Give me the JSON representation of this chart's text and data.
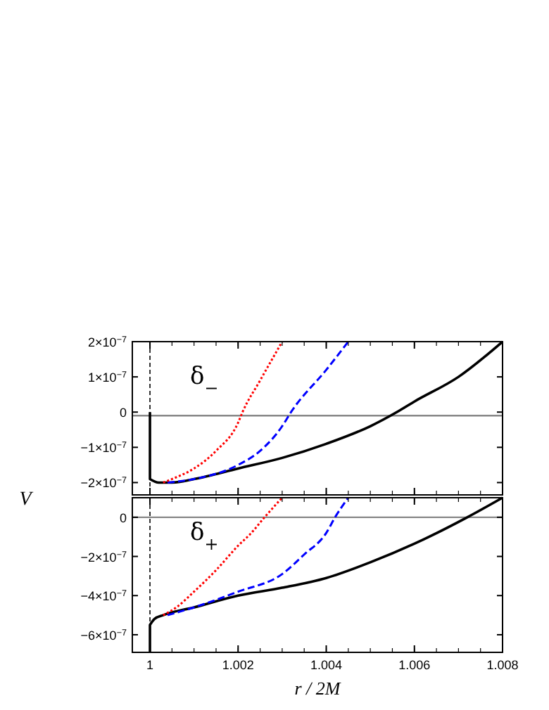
{
  "chart_data": [
    {
      "type": "line",
      "ylabel": "V",
      "xlim": [
        0.9996,
        1.008
      ],
      "ylim": [
        -2.35e-07,
        2e-07
      ],
      "xticks": [
        1,
        1.002,
        1.004,
        1.006,
        1.008
      ],
      "yticks": [
        {
          "value": -2e-07,
          "label": "−2×10$^{−7}$"
        },
        {
          "value": -1e-07,
          "label": "−1×10$^{−7}$"
        },
        {
          "value": 0,
          "label": "0"
        },
        {
          "value": 1e-07,
          "label": "1×10$^{−7}$"
        },
        {
          "value": 2e-07,
          "label": "2×10$^{−7}$"
        }
      ],
      "tick_labels": "y",
      "grid": false,
      "ref_lines": [
        {
          "axis": "x",
          "value": 1,
          "color": "#000000",
          "line_style": "dashed"
        },
        {
          "axis": "y",
          "value": -1e-08,
          "color": "#888888",
          "line_style": "solid"
        }
      ],
      "annotations": [
        "δ$_{−}$"
      ],
      "series": [
        {
          "color": "#ff0000",
          "line_style": "dotted",
          "x": [
            1.0003,
            1.0005,
            1.001,
            1.0015,
            1.002,
            1.0021,
            1.0025,
            1.003
          ],
          "values": [
            -2e-07,
            -1.9e-07,
            -1.6e-07,
            -1.1e-07,
            -3e-08,
            0,
            9e-08,
            2e-07
          ]
        },
        {
          "color": "#0000ff",
          "line_style": "dashed",
          "x": [
            1.0004,
            1.001,
            1.002,
            1.0025,
            1.003,
            1.0032,
            1.004,
            1.0045
          ],
          "values": [
            -2e-07,
            -1.9e-07,
            -1.5e-07,
            -1.1e-07,
            -4e-08,
            0,
            1.2e-07,
            2e-07
          ]
        },
        {
          "color": "#000000",
          "line_style": "solid",
          "x": [
            1,
            1,
            1.0002,
            1.0005,
            1.001,
            1.002,
            1.003,
            1.004,
            1.005,
            1.0056,
            1.006,
            1.007,
            1.008
          ],
          "values": [
            0,
            -1.9e-07,
            -2e-07,
            -2e-07,
            -1.9e-07,
            -1.6e-07,
            -1.3e-07,
            -9e-08,
            -4e-08,
            0,
            3e-08,
            1e-07,
            2e-07
          ]
        }
      ]
    },
    {
      "type": "line",
      "xlabel": "r / 2M",
      "xlim": [
        0.9996,
        1.008
      ],
      "ylim": [
        -6.9e-07,
        1e-07
      ],
      "xticks": [
        1,
        1.002,
        1.004,
        1.006,
        1.008
      ],
      "yticks": [
        {
          "value": -6e-07,
          "label": "−6×10$^{−7}$"
        },
        {
          "value": -4e-07,
          "label": "−4×10$^{−7}$"
        },
        {
          "value": -2e-07,
          "label": "−2×10$^{−7}$"
        },
        {
          "value": 0,
          "label": "0"
        }
      ],
      "grid": false,
      "ref_lines": [
        {
          "axis": "x",
          "value": 1,
          "color": "#000000",
          "line_style": "dashed"
        },
        {
          "axis": "y",
          "value": 0,
          "color": "#888888",
          "line_style": "solid"
        }
      ],
      "annotations": [
        "δ$_{+}$"
      ],
      "series": [
        {
          "color": "#ff0000",
          "line_style": "dotted",
          "x": [
            1.0003,
            1.0006,
            1.001,
            1.0015,
            1.002,
            1.0023,
            1.0026,
            1.003
          ],
          "values": [
            -5e-07,
            -4.6e-07,
            -3.8e-07,
            -2.7e-07,
            -1.45e-07,
            -8e-08,
            0,
            1e-07
          ]
        },
        {
          "color": "#0000ff",
          "line_style": "dashed",
          "x": [
            1.0004,
            1.001,
            1.002,
            1.003,
            1.0035,
            1.004,
            1.0042,
            1.0045
          ],
          "values": [
            -5e-07,
            -4.6e-07,
            -3.8e-07,
            -2.9e-07,
            -1.9e-07,
            -8e-08,
            0,
            1e-07
          ]
        },
        {
          "color": "#000000",
          "line_style": "solid",
          "x": [
            1,
            1,
            1.0001,
            1.0003,
            1.001,
            1.002,
            1.003,
            1.004,
            1.005,
            1.006,
            1.0072,
            1.008
          ],
          "values": [
            -6.9e-07,
            -5.5e-07,
            -5.2e-07,
            -5e-07,
            -4.6e-07,
            -4e-07,
            -3.6e-07,
            -3.1e-07,
            -2.3e-07,
            -1.35e-07,
            0,
            1e-07
          ]
        }
      ]
    }
  ]
}
